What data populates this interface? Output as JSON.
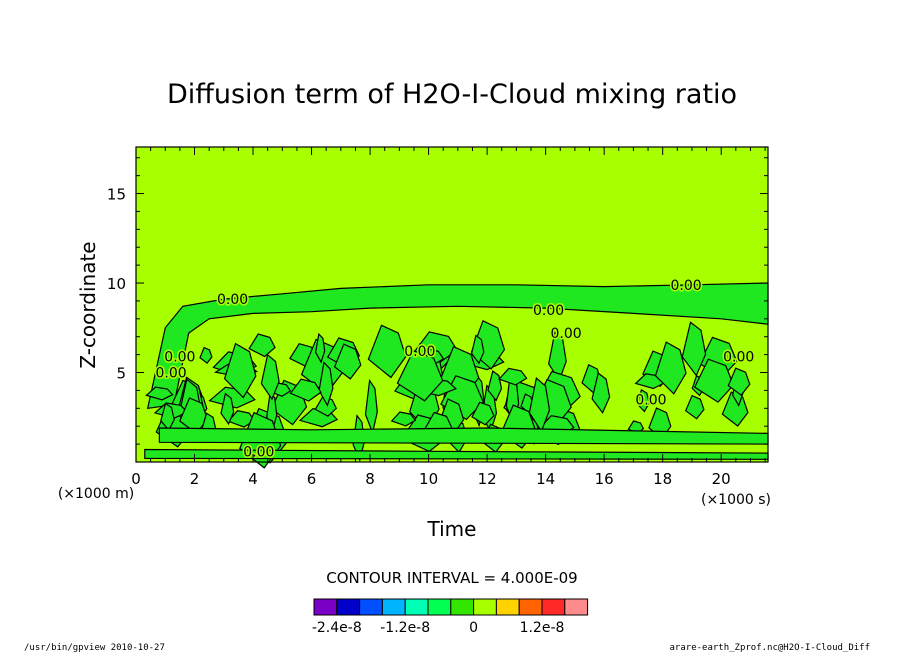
{
  "chart_data": {
    "type": "contour",
    "title": "Diffusion term of H2O-I-Cloud mixing ratio",
    "xlabel": "Time",
    "ylabel": "Z-coordinate",
    "x_unit_label": "(×1000 s)",
    "y_unit_label": "(×1000 m)",
    "xlim": [
      0,
      21.6
    ],
    "ylim": [
      0,
      17.6
    ],
    "x_ticks": [
      "0",
      "2",
      "4",
      "6",
      "8",
      "10",
      "12",
      "14",
      "16",
      "18",
      "20"
    ],
    "y_ticks": [
      "5",
      "10",
      "15"
    ],
    "contour_interval_label": "CONTOUR INTERVAL = 4.000E-09",
    "contour_labels": [
      "0.00",
      "0.00",
      "0.00",
      "0.00",
      "0.00",
      "0.00",
      "0.00",
      "0.00",
      "0.00",
      "0.00"
    ],
    "background_level_color": "#a8ff00",
    "positive_band_color": "#20e820",
    "colorbar": {
      "colors": [
        "#7a00c8",
        "#0000c8",
        "#0050ff",
        "#00b4ff",
        "#00ffb4",
        "#00ff50",
        "#32e600",
        "#a8ff00",
        "#ffd200",
        "#ff6400",
        "#ff2a28",
        "#ff8c8c"
      ],
      "labels": [
        "-2.4e-8",
        "-1.2e-8",
        "0",
        "1.2e-8"
      ]
    }
  },
  "footer": {
    "left": "/usr/bin/gpview  2010-10-27",
    "right": "arare-earth_Zprof.nc@H2O-I-Cloud_Diff"
  }
}
